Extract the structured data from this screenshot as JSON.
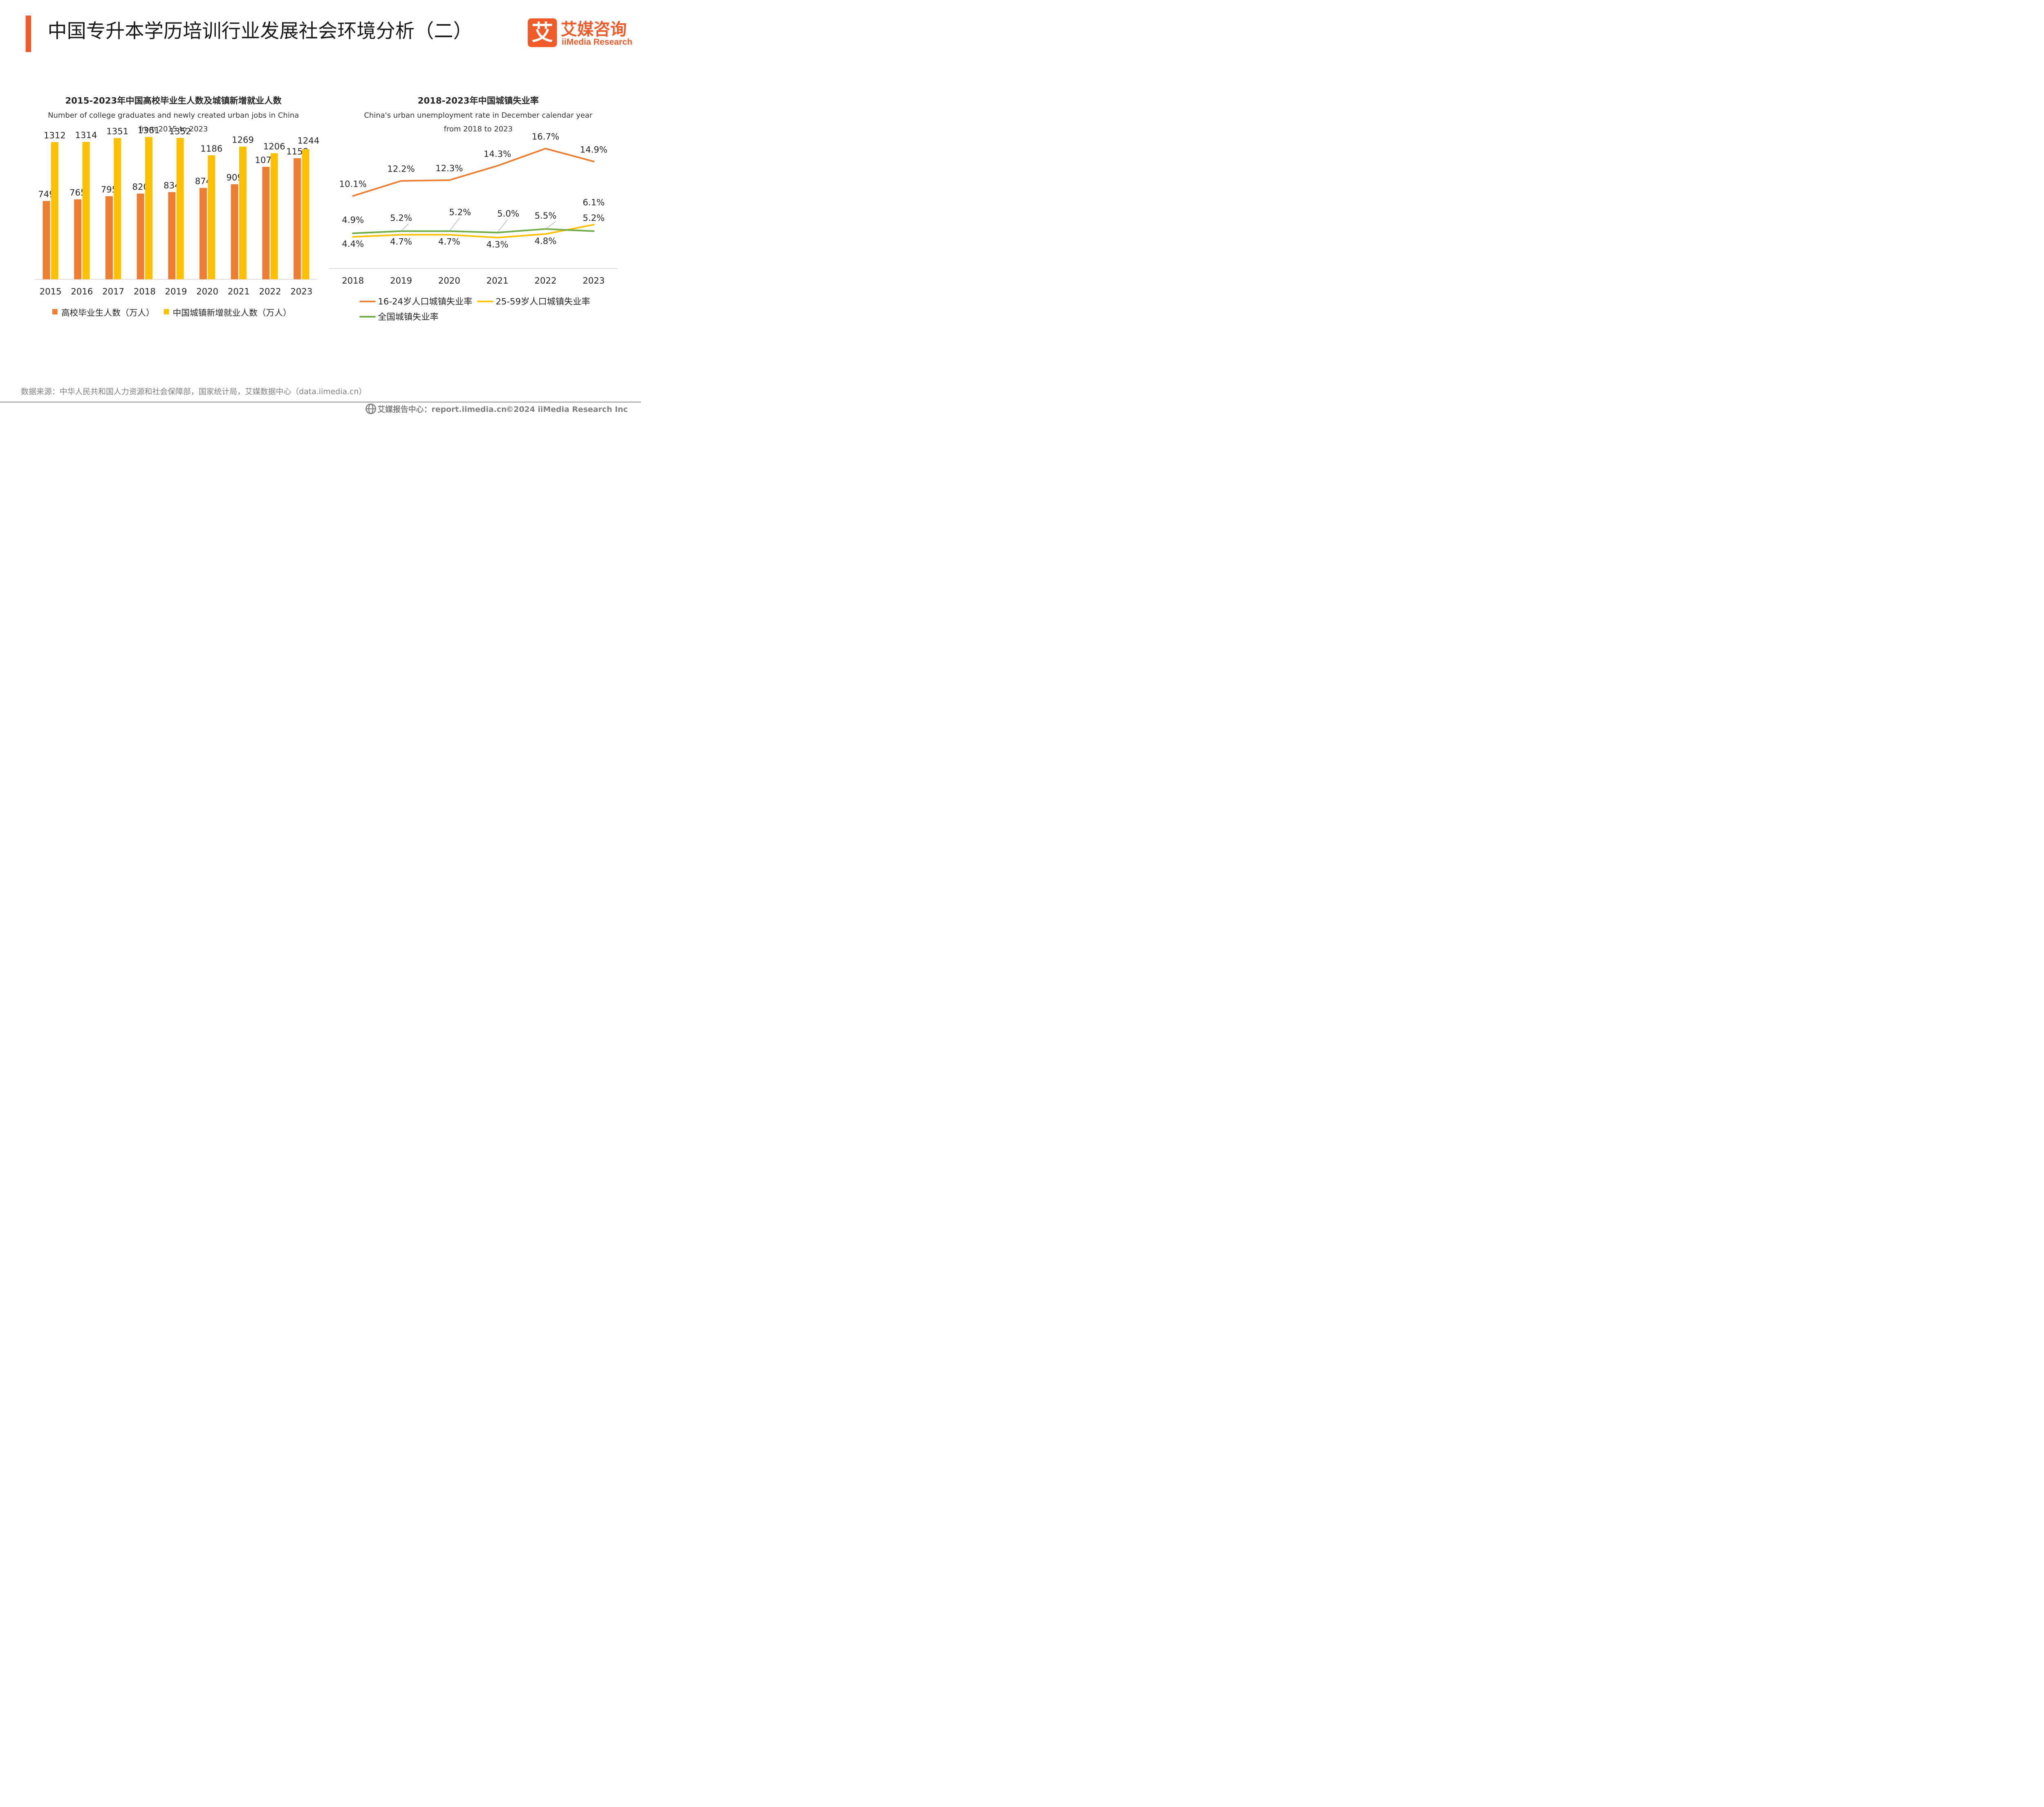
{
  "page": {
    "title": "中国专升本学历培训行业发展社会环境分析（二）",
    "logo": {
      "mark_char": "艾",
      "cn": "艾媒咨询",
      "en": "iiMedia Research"
    },
    "source": "数据来源：中华人民共和国人力资源和社会保障部，国家统计局，艾媒数据中心（data.iimedia.cn）",
    "footer_report": "艾媒报告中心：report.iimedia.cn",
    "footer_copyright": "©2024  iiMedia Research  Inc"
  },
  "colors": {
    "accent": "#ef5a28",
    "orange": "#ed7d31",
    "yellow": "#ffc000",
    "green": "#70ad47",
    "text": "#262626",
    "gray": "#808080",
    "axis": "#d9d9d9"
  },
  "chart_data": [
    {
      "type": "bar",
      "title": "2015-2023年中国高校毕业生人数及城镇新增就业人数",
      "subtitle_line1": "Number of college graduates and newly created urban jobs in China",
      "subtitle_line2": "from 2015 to 2023",
      "categories": [
        "2015",
        "2016",
        "2017",
        "2018",
        "2019",
        "2020",
        "2021",
        "2022",
        "2023"
      ],
      "ylim": [
        0,
        1500
      ],
      "series": [
        {
          "name": "高校毕业生人数（万人）",
          "color": "#ed7d31",
          "values": [
            749,
            765,
            795,
            820,
            834,
            874,
            909,
            1076,
            1158
          ]
        },
        {
          "name": "中国城镇新增就业人数（万人）",
          "color": "#ffc000",
          "values": [
            1312,
            1314,
            1351,
            1361,
            1352,
            1186,
            1269,
            1206,
            1244
          ]
        }
      ]
    },
    {
      "type": "line",
      "title": "2018-2023年中国城镇失业率",
      "subtitle_line1": "China's urban unemployment rate in December  calendar year",
      "subtitle_line2": "from 2018 to 2023",
      "x": [
        "2018",
        "2019",
        "2020",
        "2021",
        "2022",
        "2023"
      ],
      "ylim": [
        0,
        18
      ],
      "unit": "%",
      "series": [
        {
          "name": "16-24岁人口城镇失业率",
          "color": "#ed7d31",
          "values": [
            10.1,
            12.2,
            12.3,
            14.3,
            16.7,
            14.9
          ]
        },
        {
          "name": "25-59岁人口城镇失业率",
          "color": "#ffc000",
          "values": [
            4.4,
            4.7,
            4.7,
            4.3,
            4.8,
            6.1
          ]
        },
        {
          "name": "全国城镇失业率",
          "color": "#70ad47",
          "values": [
            4.9,
            5.2,
            5.2,
            5.0,
            5.5,
            5.2
          ]
        }
      ]
    }
  ]
}
